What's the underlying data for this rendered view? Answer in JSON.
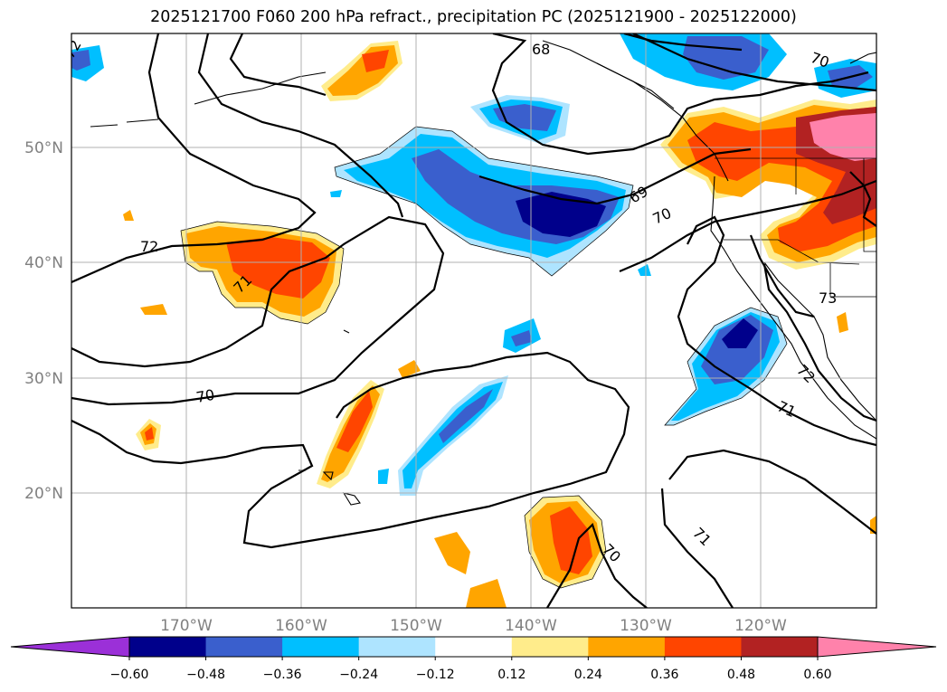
{
  "title": "2025121700 F060 200 hPa refract., precipitation PC (2025121900 - 2025122000)",
  "map": {
    "lat_labels": [
      "50°N",
      "40°N",
      "30°N",
      "20°N"
    ],
    "lon_labels": [
      "170°W",
      "160°W",
      "150°W",
      "140°W",
      "130°W",
      "120°W"
    ],
    "contour_labels": [
      "68",
      "69",
      "70",
      "70",
      "70",
      "70",
      "71",
      "71",
      "71",
      "72",
      "72",
      "72",
      "73"
    ]
  },
  "colorbar": {
    "ticks": [
      "−0.60",
      "−0.48",
      "−0.36",
      "−0.24",
      "−0.12",
      "0.12",
      "0.24",
      "0.36",
      "0.48",
      "0.60"
    ],
    "colors": [
      "#9b30d8",
      "#00008b",
      "#3a5fcd",
      "#00bfff",
      "#aee4ff",
      "#ffffff",
      "#ffec8b",
      "#ffa500",
      "#ff4500",
      "#b22222",
      "#ff82ab"
    ]
  }
}
